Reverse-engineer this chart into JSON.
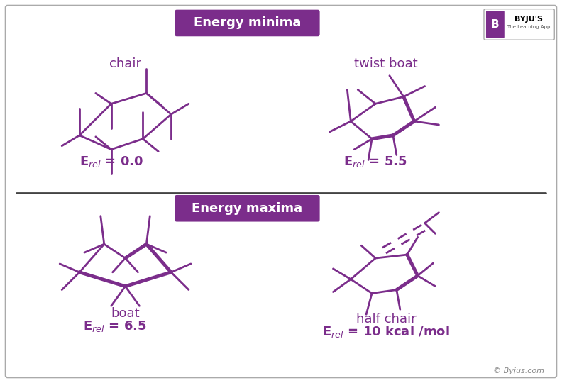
{
  "bg_color": "#ffffff",
  "purple": "#7B2D8B",
  "box_bg": "#7B2D8B",
  "minima_label": "Energy minima",
  "maxima_label": "Energy maxima",
  "chair_label": "chair",
  "chair_energy": "E$_{rel}$ = 0.0",
  "twist_boat_label": "twist boat",
  "twist_boat_energy": "E$_{rel}$ = 5.5",
  "boat_label": "boat",
  "boat_energy": "E$_{rel}$ = 6.5",
  "half_chair_label": "half chair",
  "half_chair_energy": "E$_{rel}$ = 10 kcal /mol",
  "byju_text": "© Byjus.com",
  "lw_thin": 2.0,
  "lw_thick": 3.5,
  "figsize": [
    7.92,
    5.4
  ],
  "dpi": 100
}
